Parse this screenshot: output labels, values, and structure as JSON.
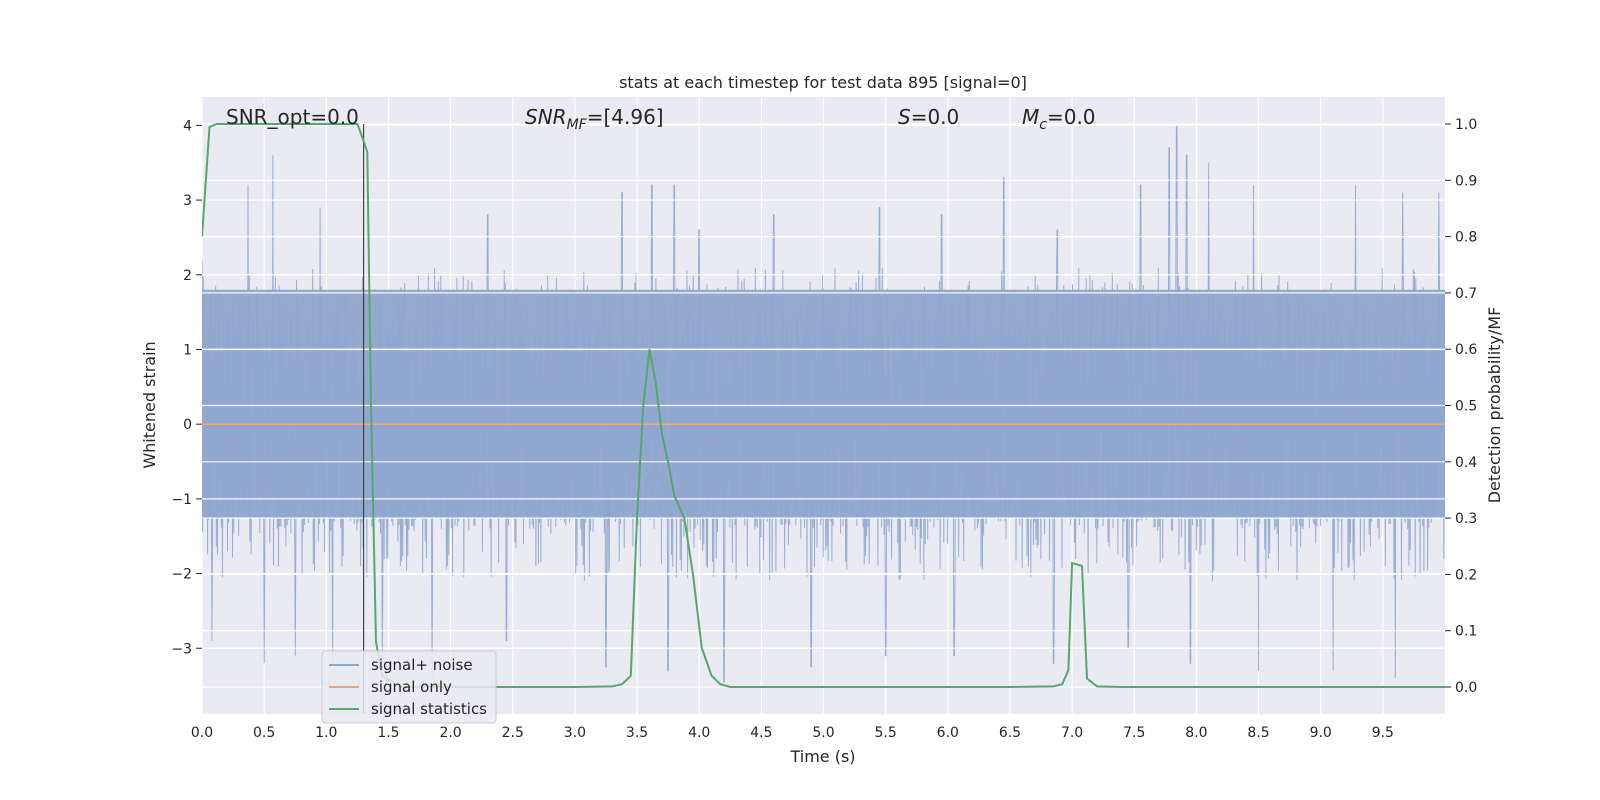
{
  "chart_data": {
    "type": "line",
    "title": "stats at each timestep for test data 895 [signal=0]",
    "xlabel": "Time (s)",
    "ylabel_left": "Whitened strain",
    "ylabel_right": "Detection probability/MF",
    "xlim": [
      0.0,
      10.0
    ],
    "ylim_left": [
      -3.88,
      4.38
    ],
    "ylim_right": [
      -0.048,
      1.048
    ],
    "x_ticks": [
      0.0,
      0.5,
      1.0,
      1.5,
      2.0,
      2.5,
      3.0,
      3.5,
      4.0,
      4.5,
      5.0,
      5.5,
      6.0,
      6.5,
      7.0,
      7.5,
      8.0,
      8.5,
      9.0,
      9.5
    ],
    "x_tick_labels": [
      "0.0",
      "0.5",
      "1.0",
      "1.5",
      "2.0",
      "2.5",
      "3.0",
      "3.5",
      "4.0",
      "4.5",
      "5.0",
      "5.5",
      "6.0",
      "6.5",
      "7.0",
      "7.5",
      "8.0",
      "8.5",
      "9.0",
      "9.5"
    ],
    "y_left_ticks": [
      -3,
      -2,
      -1,
      0,
      1,
      2,
      3,
      4
    ],
    "y_left_tick_labels": [
      "−3",
      "−2",
      "−1",
      "0",
      "1",
      "2",
      "3",
      "4"
    ],
    "y_right_ticks": [
      0.0,
      0.1,
      0.2,
      0.3,
      0.4,
      0.5,
      0.6,
      0.7,
      0.8,
      0.9,
      1.0
    ],
    "y_right_tick_labels": [
      "0.0",
      "0.1",
      "0.2",
      "0.3",
      "0.4",
      "0.5",
      "0.6",
      "0.7",
      "0.8",
      "0.9",
      "1.0"
    ],
    "grid": true,
    "legend_placement": "lower-left",
    "annotations": {
      "snr_opt": "SNR_opt=0.0",
      "snr_mf_sym": "SNR",
      "snr_mf_sub": "MF",
      "snr_mf_val": "=[4.96]",
      "s_sym": "S",
      "s_val": "=0.0",
      "mc_sym": "M",
      "mc_sub": "c",
      "mc_val": "=0.0"
    },
    "vertical_marker_x": 1.3,
    "series": [
      {
        "name": "signal+ noise",
        "color": "#8fa6cf",
        "axis": "left",
        "kind": "noise",
        "core_band": [
          -1.25,
          1.8
        ],
        "upper_peaks": [
          [
            0.0,
            2.2
          ],
          [
            0.37,
            3.2
          ],
          [
            0.57,
            3.6
          ],
          [
            0.95,
            2.9
          ],
          [
            1.85,
            2.6
          ],
          [
            2.3,
            2.8
          ],
          [
            3.38,
            3.1
          ],
          [
            3.62,
            3.2
          ],
          [
            3.8,
            3.2
          ],
          [
            4.0,
            2.6
          ],
          [
            4.6,
            2.8
          ],
          [
            5.45,
            2.9
          ],
          [
            5.95,
            2.8
          ],
          [
            6.45,
            3.3
          ],
          [
            6.88,
            2.6
          ],
          [
            7.55,
            3.2
          ],
          [
            7.78,
            3.7
          ],
          [
            7.84,
            4.0
          ],
          [
            7.92,
            3.6
          ],
          [
            8.1,
            3.5
          ],
          [
            8.46,
            3.2
          ],
          [
            9.28,
            3.2
          ],
          [
            9.66,
            3.1
          ],
          [
            9.95,
            3.1
          ]
        ],
        "lower_peaks": [
          [
            0.08,
            -2.9
          ],
          [
            0.5,
            -3.2
          ],
          [
            0.75,
            -3.1
          ],
          [
            1.05,
            -3.2
          ],
          [
            1.45,
            -3.3
          ],
          [
            1.85,
            -3.4
          ],
          [
            2.45,
            -2.9
          ],
          [
            3.25,
            -3.25
          ],
          [
            3.75,
            -3.3
          ],
          [
            4.2,
            -3.45
          ],
          [
            4.9,
            -3.25
          ],
          [
            5.5,
            -3.1
          ],
          [
            6.05,
            -3.1
          ],
          [
            6.85,
            -3.2
          ],
          [
            7.45,
            -3.0
          ],
          [
            7.95,
            -3.2
          ],
          [
            8.5,
            -3.3
          ],
          [
            9.1,
            -3.3
          ],
          [
            9.6,
            -3.4
          ]
        ]
      },
      {
        "name": "signal only",
        "color": "#e9a47c",
        "axis": "left",
        "x": [
          0.0,
          10.0
        ],
        "y": [
          0.0,
          0.0
        ]
      },
      {
        "name": "signal statistics",
        "color": "#55a868",
        "axis": "right",
        "x": [
          0.0,
          0.06,
          0.12,
          0.2,
          0.4,
          0.8,
          1.1,
          1.25,
          1.3,
          1.33,
          1.36,
          1.4,
          1.45,
          1.6,
          2.0,
          3.0,
          3.3,
          3.38,
          3.45,
          3.5,
          3.55,
          3.6,
          3.65,
          3.7,
          3.75,
          3.8,
          3.88,
          3.95,
          4.02,
          4.1,
          4.17,
          4.25,
          5.0,
          6.5,
          6.85,
          6.92,
          6.97,
          7.0,
          7.08,
          7.12,
          7.2,
          7.4,
          10.0
        ],
        "y": [
          0.8,
          0.995,
          1.0,
          1.0,
          1.0,
          1.0,
          1.0,
          1.0,
          0.97,
          0.95,
          0.5,
          0.08,
          0.02,
          0.0,
          0.0,
          0.0,
          0.001,
          0.005,
          0.02,
          0.3,
          0.5,
          0.6,
          0.54,
          0.45,
          0.4,
          0.34,
          0.3,
          0.2,
          0.07,
          0.02,
          0.005,
          0.0,
          0.0,
          0.0,
          0.001,
          0.005,
          0.03,
          0.22,
          0.215,
          0.015,
          0.001,
          0.0,
          0.0
        ]
      }
    ]
  }
}
